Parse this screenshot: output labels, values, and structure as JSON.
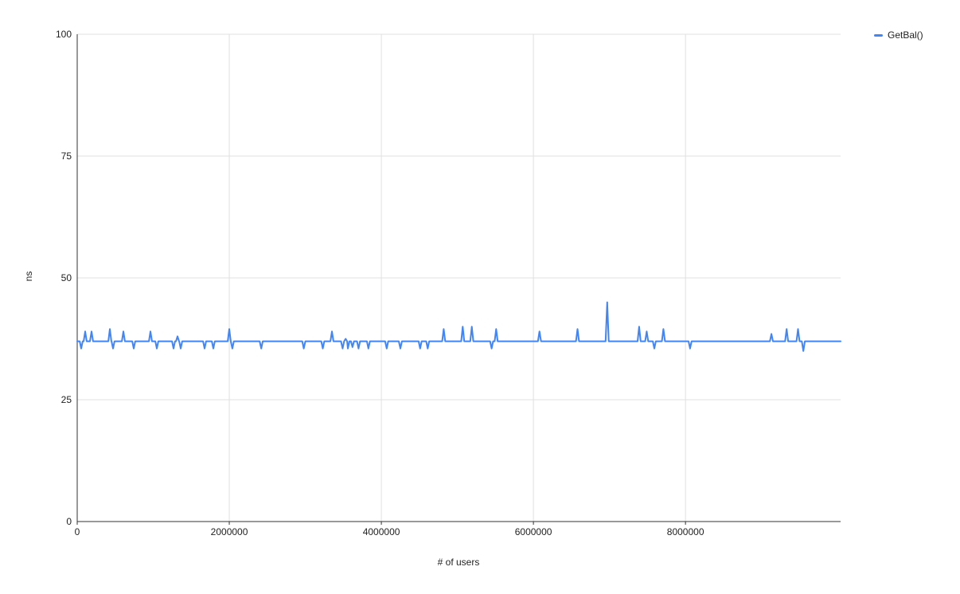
{
  "page": {
    "background": "#ffffff"
  },
  "chart_data": {
    "type": "line",
    "xlabel": "# of users",
    "ylabel": "ns",
    "xlim": [
      0,
      10040000
    ],
    "ylim": [
      0,
      100
    ],
    "x_ticks": [
      0,
      2000000,
      4000000,
      6000000,
      8000000
    ],
    "x_tick_labels": [
      "0",
      "2000000",
      "4000000",
      "6000000",
      "8000000"
    ],
    "y_ticks": [
      0,
      25,
      50,
      75,
      100
    ],
    "y_tick_labels": [
      "0",
      "25",
      "50",
      "75",
      "100"
    ],
    "grid": true,
    "legend": {
      "position": "top-right",
      "entries": [
        {
          "label": "GetBal()",
          "color": "#4285f4"
        }
      ]
    },
    "series": [
      {
        "name": "GetBal()",
        "color": "#4285f4",
        "baseline_ns": 37,
        "spike_halfwidth_users": 20000,
        "spikes": [
          [
            52000,
            35.5
          ],
          [
            105000,
            39
          ],
          [
            188000,
            39
          ],
          [
            429000,
            39.5
          ],
          [
            471000,
            35.5
          ],
          [
            607000,
            39
          ],
          [
            743000,
            35.5
          ],
          [
            963000,
            39
          ],
          [
            1047000,
            35.5
          ],
          [
            1267000,
            35.5
          ],
          [
            1319000,
            38
          ],
          [
            1361000,
            35.5
          ],
          [
            1675000,
            35.5
          ],
          [
            1790000,
            35.5
          ],
          [
            2000000,
            39.5
          ],
          [
            2040000,
            35.5
          ],
          [
            2420000,
            35.5
          ],
          [
            2980000,
            35.5
          ],
          [
            3230000,
            35.5
          ],
          [
            3350000,
            39
          ],
          [
            3490000,
            35.5
          ],
          [
            3530000,
            37.5
          ],
          [
            3560000,
            35.5
          ],
          [
            3620000,
            35.8
          ],
          [
            3700000,
            35.5
          ],
          [
            3830000,
            35.5
          ],
          [
            4070000,
            35.5
          ],
          [
            4250000,
            35.5
          ],
          [
            4510000,
            35.5
          ],
          [
            4610000,
            35.5
          ],
          [
            4820000,
            39.5
          ],
          [
            5070000,
            40
          ],
          [
            5190000,
            40
          ],
          [
            5450000,
            35.5
          ],
          [
            5510000,
            39.5
          ],
          [
            6080000,
            39
          ],
          [
            6580000,
            39.5
          ],
          [
            6970000,
            45
          ],
          [
            7390000,
            40
          ],
          [
            7490000,
            39
          ],
          [
            7590000,
            35.5
          ],
          [
            7710000,
            39.5
          ],
          [
            8060000,
            35.5
          ],
          [
            9130000,
            38.5
          ],
          [
            9330000,
            39.5
          ],
          [
            9480000,
            39.5
          ],
          [
            9550000,
            35
          ]
        ]
      }
    ],
    "colors": {
      "series_blue": "#4285f4",
      "gridline": "#e0e0e0",
      "axis": "#333333",
      "text": "#1f1f1f"
    }
  }
}
